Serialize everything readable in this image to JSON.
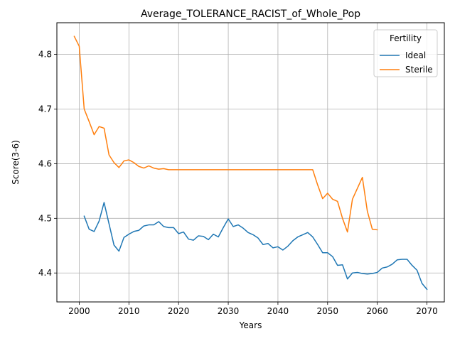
{
  "chart_data": {
    "type": "line",
    "title": "Average_TOLERANCE_RACIST_of_Whole_Pop",
    "xlabel": "Years",
    "ylabel": "Score(3-6)",
    "xlim": [
      1995.5,
      2073.5
    ],
    "ylim": [
      4.347,
      4.858
    ],
    "xticks": [
      2000,
      2010,
      2020,
      2030,
      2040,
      2050,
      2060,
      2070
    ],
    "yticks": [
      4.4,
      4.5,
      4.6,
      4.7,
      4.8
    ],
    "ytick_labels": [
      "4.4",
      "4.5",
      "4.6",
      "4.7",
      "4.8"
    ],
    "grid": true,
    "legend": {
      "title": "Fertility",
      "position": "top-right"
    },
    "series": [
      {
        "name": "Ideal",
        "color": "#1f77b4",
        "x": [
          2001,
          2002,
          2003,
          2004,
          2005,
          2006,
          2007,
          2008,
          2009,
          2010,
          2011,
          2012,
          2013,
          2014,
          2015,
          2016,
          2017,
          2018,
          2019,
          2020,
          2021,
          2022,
          2023,
          2024,
          2025,
          2026,
          2027,
          2028,
          2029,
          2030,
          2031,
          2032,
          2033,
          2034,
          2035,
          2036,
          2037,
          2038,
          2039,
          2040,
          2041,
          2042,
          2043,
          2044,
          2045,
          2046,
          2047,
          2048,
          2049,
          2050,
          2051,
          2052,
          2053,
          2054,
          2055,
          2056,
          2057,
          2058,
          2059,
          2060,
          2061,
          2062,
          2063,
          2064,
          2065,
          2066,
          2067,
          2068,
          2069,
          2070
        ],
        "y": [
          4.504,
          4.48,
          4.476,
          4.495,
          4.529,
          4.49,
          4.451,
          4.44,
          4.465,
          4.471,
          4.476,
          4.478,
          4.486,
          4.488,
          4.488,
          4.494,
          4.485,
          4.483,
          4.483,
          4.472,
          4.475,
          4.462,
          4.46,
          4.468,
          4.467,
          4.461,
          4.471,
          4.466,
          4.483,
          4.499,
          4.485,
          4.488,
          4.482,
          4.474,
          4.47,
          4.464,
          4.452,
          4.454,
          4.446,
          4.448,
          4.442,
          4.449,
          4.459,
          4.466,
          4.47,
          4.474,
          4.466,
          4.452,
          4.437,
          4.437,
          4.43,
          4.414,
          4.415,
          4.389,
          4.4,
          4.401,
          4.399,
          4.398,
          4.399,
          4.401,
          4.409,
          4.411,
          4.416,
          4.424,
          4.425,
          4.425,
          4.414,
          4.405,
          4.381,
          4.37
        ]
      },
      {
        "name": "Sterile",
        "color": "#ff7f0e",
        "x": [
          1999,
          2000,
          2001,
          2002,
          2003,
          2004,
          2005,
          2006,
          2007,
          2008,
          2009,
          2010,
          2011,
          2012,
          2013,
          2014,
          2015,
          2016,
          2017,
          2018,
          2019,
          2020,
          2021,
          2022,
          2023,
          2024,
          2025,
          2026,
          2027,
          2028,
          2029,
          2030,
          2031,
          2032,
          2033,
          2034,
          2035,
          2036,
          2037,
          2038,
          2039,
          2040,
          2041,
          2042,
          2043,
          2044,
          2045,
          2046,
          2047,
          2048,
          2049,
          2050,
          2051,
          2052,
          2053,
          2054,
          2055,
          2056,
          2057,
          2058,
          2059,
          2060
        ],
        "y": [
          4.833,
          4.815,
          4.7,
          4.677,
          4.653,
          4.668,
          4.665,
          4.616,
          4.602,
          4.593,
          4.605,
          4.607,
          4.602,
          4.595,
          4.592,
          4.596,
          4.592,
          4.59,
          4.591,
          4.589,
          4.589,
          4.589,
          4.589,
          4.589,
          4.589,
          4.589,
          4.589,
          4.589,
          4.589,
          4.589,
          4.589,
          4.589,
          4.589,
          4.589,
          4.589,
          4.589,
          4.589,
          4.589,
          4.589,
          4.589,
          4.589,
          4.589,
          4.589,
          4.589,
          4.589,
          4.589,
          4.589,
          4.589,
          4.589,
          4.561,
          4.536,
          4.546,
          4.535,
          4.531,
          4.5,
          4.475,
          4.535,
          4.555,
          4.575,
          4.513,
          4.48,
          4.479
        ]
      }
    ]
  }
}
